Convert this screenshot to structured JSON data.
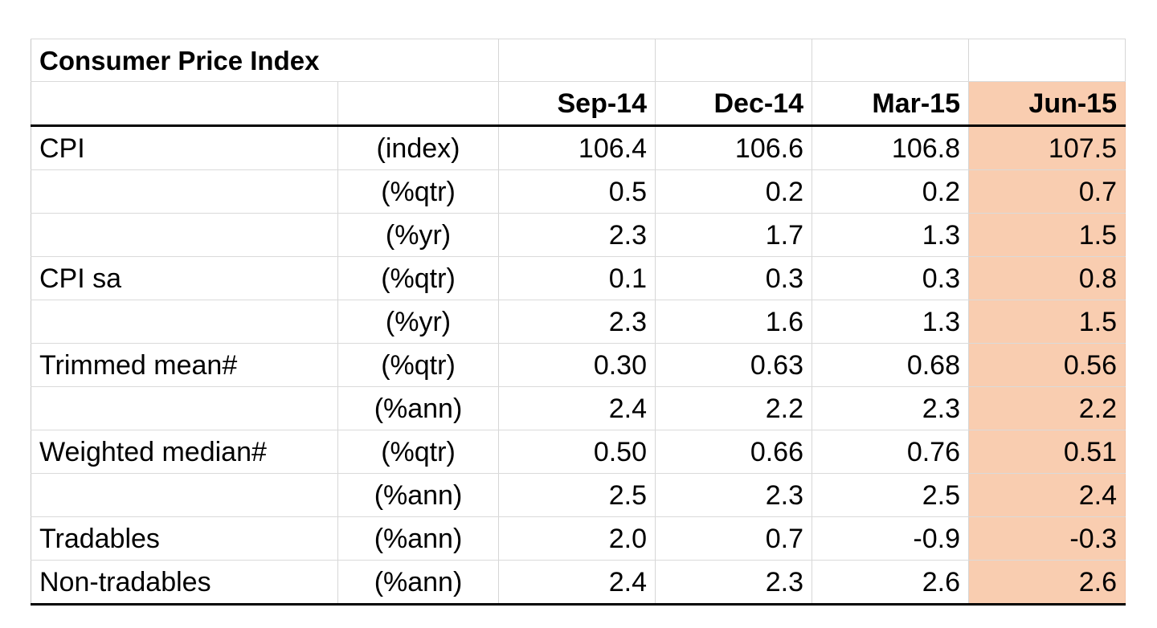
{
  "table": {
    "title": "Consumer Price Index",
    "columns": [
      "Sep-14",
      "Dec-14",
      "Mar-15",
      "Jun-15"
    ],
    "highlight_color": "#f9cdb0",
    "rows": [
      {
        "label": "CPI",
        "unit": "(index)",
        "values": [
          "106.4",
          "106.6",
          "106.8",
          "107.5"
        ]
      },
      {
        "label": "",
        "unit": "(%qtr)",
        "values": [
          "0.5",
          "0.2",
          "0.2",
          "0.7"
        ]
      },
      {
        "label": "",
        "unit": "(%yr)",
        "values": [
          "2.3",
          "1.7",
          "1.3",
          "1.5"
        ]
      },
      {
        "label": "CPI sa",
        "unit": "(%qtr)",
        "values": [
          "0.1",
          "0.3",
          "0.3",
          "0.8"
        ]
      },
      {
        "label": "",
        "unit": "(%yr)",
        "values": [
          "2.3",
          "1.6",
          "1.3",
          "1.5"
        ]
      },
      {
        "label": "Trimmed mean#",
        "unit": "(%qtr)",
        "values": [
          "0.30",
          "0.63",
          "0.68",
          "0.56"
        ]
      },
      {
        "label": "",
        "unit": "(%ann)",
        "values": [
          "2.4",
          "2.2",
          "2.3",
          "2.2"
        ]
      },
      {
        "label": "Weighted median#",
        "unit": "(%qtr)",
        "values": [
          "0.50",
          "0.66",
          "0.76",
          "0.51"
        ]
      },
      {
        "label": "",
        "unit": "(%ann)",
        "values": [
          "2.5",
          "2.3",
          "2.5",
          "2.4"
        ]
      },
      {
        "label": "Tradables",
        "unit": "(%ann)",
        "values": [
          "2.0",
          "0.7",
          "-0.9",
          "-0.3"
        ]
      },
      {
        "label": "Non-tradables",
        "unit": "(%ann)",
        "values": [
          "2.4",
          "2.3",
          "2.6",
          "2.6"
        ]
      }
    ]
  }
}
